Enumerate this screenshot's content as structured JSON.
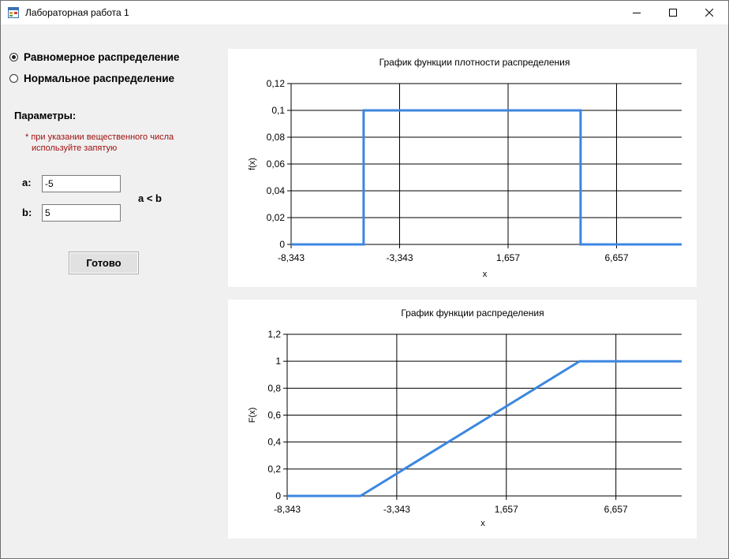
{
  "window": {
    "title": "Лабораторная работа 1",
    "controls": {
      "minimize": "minimize-icon",
      "maximize": "maximize-icon",
      "close": "close-icon"
    }
  },
  "distribution": {
    "options": [
      {
        "label": "Равномерное распределение",
        "selected": true
      },
      {
        "label": "Нормальное распределение",
        "selected": false
      }
    ]
  },
  "params": {
    "title": "Параметры:",
    "note_line1": "* при указании вещественного числа",
    "note_line2": "используйте запятую",
    "a_label": "a:",
    "a_value": "-5",
    "b_label": "b:",
    "b_value": "5",
    "constraint": "a < b",
    "submit_label": "Готово"
  },
  "colors": {
    "series": "#3c87e0",
    "note": "#a01010",
    "grid": "#000000"
  },
  "chart_data": [
    {
      "type": "line",
      "title": "График функции плотности распределения",
      "xlabel": "x",
      "ylabel": "f(x)",
      "xlim": [
        -8.343,
        9.657
      ],
      "ylim": [
        0,
        0.12
      ],
      "x_ticks": [
        -8.343,
        -3.343,
        1.657,
        6.657
      ],
      "x_tick_labels": [
        "-8,343",
        "-3,343",
        "1,657",
        "6,657"
      ],
      "y_ticks": [
        0,
        0.02,
        0.04,
        0.06,
        0.08,
        0.1,
        0.12
      ],
      "y_tick_labels": [
        "0",
        "0,02",
        "0,04",
        "0,06",
        "0,08",
        "0,1",
        "0,12"
      ],
      "grid": true,
      "series": [
        {
          "x": [
            -8.343,
            -5,
            -5,
            5,
            5,
            9.657
          ],
          "y": [
            0,
            0,
            0.1,
            0.1,
            0,
            0
          ]
        }
      ]
    },
    {
      "type": "line",
      "title": "График функции распределения",
      "xlabel": "x",
      "ylabel": "F(x)",
      "xlim": [
        -8.343,
        9.657
      ],
      "ylim": [
        0,
        1.2
      ],
      "x_ticks": [
        -8.343,
        -3.343,
        1.657,
        6.657
      ],
      "x_tick_labels": [
        "-8,343",
        "-3,343",
        "1,657",
        "6,657"
      ],
      "y_ticks": [
        0,
        0.2,
        0.4,
        0.6,
        0.8,
        1,
        1.2
      ],
      "y_tick_labels": [
        "0",
        "0,2",
        "0,4",
        "0,6",
        "0,8",
        "1",
        "1,2"
      ],
      "grid": true,
      "series": [
        {
          "x": [
            -8.343,
            -5,
            5,
            9.657
          ],
          "y": [
            0,
            0,
            1,
            1
          ]
        }
      ]
    }
  ]
}
